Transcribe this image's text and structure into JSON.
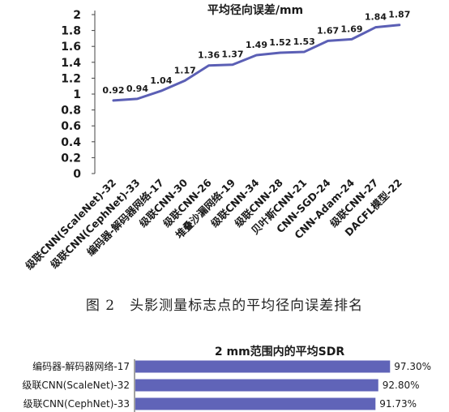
{
  "chart_data": [
    {
      "type": "line",
      "title": "平均径向误差/mm",
      "categories": [
        "级联CNN(ScaleNet)-32",
        "级联CNN(CephNet)-33",
        "编码器-解码器网络-17",
        "级联CNN-30",
        "级联CNN-26",
        "堆叠沙漏网络-19",
        "级联CNN-34",
        "级联CNN-28",
        "贝叶斯CNN-21",
        "CNN-SGD-24",
        "CNN-Adam-24",
        "级联CNN-27",
        "DACFL模型-22"
      ],
      "series": [
        {
          "values": [
            0.92,
            0.94,
            1.04,
            1.17,
            1.36,
            1.37,
            1.49,
            1.52,
            1.53,
            1.67,
            1.69,
            1.84,
            1.87
          ],
          "labels": [
            "0.92",
            "0.94",
            "1.04",
            "1.17",
            "1.36",
            "1.37",
            "1.49",
            "1.52",
            "1.53",
            "1.67",
            "1.69",
            "1.84",
            "1.87"
          ]
        }
      ],
      "yticks": [
        "0",
        "0.2",
        "0.4",
        "0.6",
        "0.8",
        "1",
        "1.2",
        "1.4",
        "1.6",
        "1.8",
        "2"
      ],
      "ylim": [
        0,
        2
      ],
      "grid": false,
      "color": "#5b5fb5"
    },
    {
      "type": "bar",
      "orientation": "horizontal",
      "title": "2 mm范围内的平均SDR",
      "categories": [
        "编码器-解码器网络-17",
        "级联CNN(ScaleNet)-32",
        "级联CNN(CephNet)-33"
      ],
      "values": [
        97.3,
        92.8,
        91.73
      ],
      "labels": [
        "97.30%",
        "92.80%",
        "91.73%"
      ],
      "xlim": [
        0,
        100
      ],
      "color": "#6064b8"
    }
  ],
  "caption": "图 2　头影测量标志点的平均径向误差排名"
}
